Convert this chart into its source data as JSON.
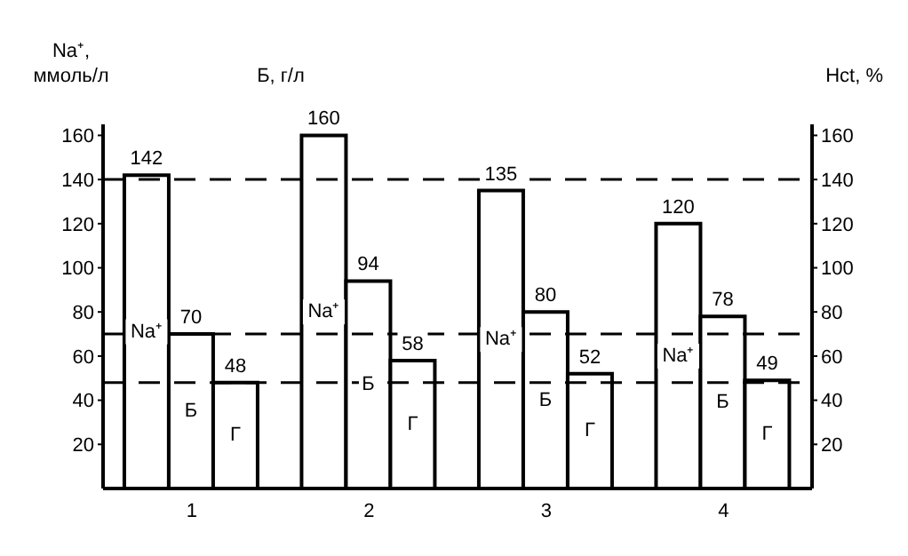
{
  "chart_data": {
    "type": "bar",
    "categories": [
      "1",
      "2",
      "3",
      "4"
    ],
    "series": [
      {
        "name": "Na⁺",
        "color": "#ffffff",
        "values": [
          142,
          160,
          135,
          120
        ]
      },
      {
        "name": "Б",
        "color": "#ffffff",
        "values": [
          70,
          94,
          80,
          78
        ]
      },
      {
        "name": "Г",
        "color": "#ffffff",
        "values": [
          48,
          58,
          52,
          49
        ]
      }
    ],
    "ylabel": "Na⁺, ммоль/л",
    "y2label": "Hct, %",
    "annotations": [
      "Б, г/л"
    ],
    "ylim": [
      0,
      165
    ],
    "yticks": [
      20,
      40,
      60,
      80,
      100,
      120,
      140,
      160
    ],
    "y2lim": [
      0,
      165
    ],
    "y2ticks": [
      20,
      40,
      60,
      80,
      100,
      120,
      140,
      160
    ],
    "ref_lines": [
      {
        "axis": "y",
        "value": 140
      },
      {
        "axis": "y",
        "value": 70
      },
      {
        "axis": "y",
        "value": 48
      }
    ],
    "data_labels": true
  }
}
